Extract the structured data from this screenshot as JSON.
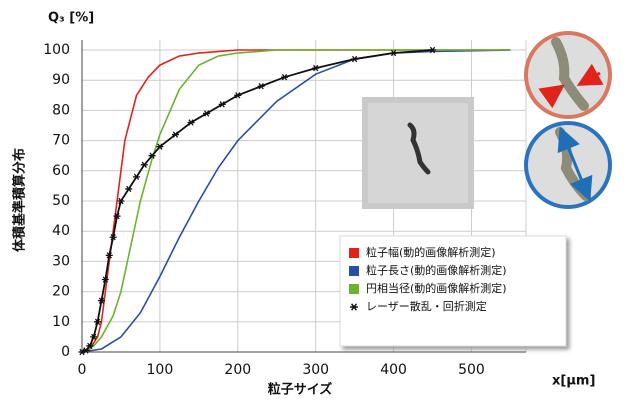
{
  "chart_data": {
    "type": "line",
    "ylabel": "Q₃ [%]",
    "ylabel_side": "体積基準積算分布",
    "xlabel": "粒子サイズ",
    "xunit": "x[μm]",
    "xlim": [
      0,
      570
    ],
    "ylim": [
      0,
      100
    ],
    "xticks": [
      0,
      100,
      200,
      300,
      400,
      500
    ],
    "yticks": [
      0,
      10,
      20,
      30,
      40,
      50,
      60,
      70,
      80,
      90,
      100
    ],
    "grid": true,
    "series": [
      {
        "name": "粒子幅(動的画像解析測定)",
        "color": "#e2231a",
        "markers": false,
        "x": [
          0,
          10,
          20,
          25,
          35,
          45,
          55,
          70,
          85,
          100,
          125,
          150,
          200,
          300,
          550
        ],
        "values": [
          0,
          1,
          5,
          10,
          30,
          50,
          70,
          85,
          91,
          95,
          98,
          99,
          100,
          100,
          100
        ]
      },
      {
        "name": "粒子長さ(動的画像解析測定)",
        "color": "#2a4fa0",
        "markers": false,
        "x": [
          0,
          25,
          50,
          75,
          100,
          125,
          150,
          175,
          200,
          250,
          300,
          350,
          400,
          450,
          550
        ],
        "values": [
          0,
          1,
          5,
          13,
          25,
          38,
          50,
          61,
          70,
          83,
          92,
          97,
          99,
          99.5,
          100
        ]
      },
      {
        "name": "円相当径(動的画像解析測定)",
        "color": "#6ab42d",
        "markers": false,
        "x": [
          0,
          15,
          25,
          40,
          50,
          60,
          75,
          90,
          100,
          125,
          150,
          175,
          200,
          250,
          550
        ],
        "values": [
          0,
          2,
          5,
          12,
          20,
          32,
          50,
          64,
          72,
          87,
          95,
          98,
          99,
          100,
          100
        ]
      },
      {
        "name": "レーザー散乱・回折測定",
        "color": "#111111",
        "markers": true,
        "x": [
          0,
          5,
          10,
          15,
          20,
          25,
          30,
          35,
          40,
          45,
          50,
          60,
          70,
          80,
          90,
          100,
          120,
          140,
          160,
          180,
          200,
          230,
          260,
          300,
          350,
          400,
          450
        ],
        "values": [
          0,
          0.5,
          2,
          5,
          10,
          17,
          24,
          32,
          38,
          45,
          50,
          54,
          58,
          62,
          65,
          68,
          72,
          76,
          79,
          82,
          85,
          88,
          91,
          94,
          97,
          99,
          100
        ]
      }
    ]
  }
}
